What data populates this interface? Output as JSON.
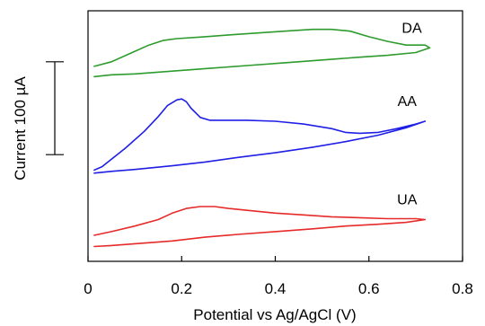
{
  "chart_data": {
    "type": "line",
    "title": "",
    "xlabel": "Potential vs Ag/AgCl  (V)",
    "ylabel": "Current  100 µA",
    "xlim": [
      0,
      0.8
    ],
    "xticks": [
      0,
      0.2,
      0.4,
      0.6,
      0.8
    ],
    "xtick_labels": [
      "0",
      "0.2",
      "0.4",
      "0.6",
      "0.8"
    ],
    "ylim": [
      0,
      270
    ],
    "y_scale_bar": {
      "label": "Current  100 µA",
      "value": 100,
      "from": 115,
      "to": 215
    },
    "grid": false,
    "legend": "none",
    "series": [
      {
        "name": "DA",
        "color": "#2e9b2e",
        "x": [
          0.012,
          0.05,
          0.09,
          0.13,
          0.16,
          0.19,
          0.25,
          0.3,
          0.36,
          0.42,
          0.48,
          0.52,
          0.56,
          0.6,
          0.64,
          0.68,
          0.72,
          0.73,
          0.7,
          0.64,
          0.58,
          0.5,
          0.42,
          0.34,
          0.26,
          0.18,
          0.1,
          0.05,
          0.012
        ],
        "y": [
          210,
          215,
          224,
          233,
          238,
          240,
          242,
          244,
          246,
          248,
          250,
          250,
          248,
          242,
          237,
          233,
          233,
          230,
          225,
          222,
          220,
          217,
          214,
          211,
          208,
          205,
          202,
          201,
          199
        ]
      },
      {
        "name": "AA",
        "color": "#1f1fe6",
        "x": [
          0.012,
          0.03,
          0.05,
          0.08,
          0.12,
          0.15,
          0.17,
          0.19,
          0.2,
          0.21,
          0.22,
          0.24,
          0.26,
          0.3,
          0.34,
          0.4,
          0.46,
          0.52,
          0.55,
          0.58,
          0.62,
          0.66,
          0.7,
          0.72,
          0.68,
          0.62,
          0.55,
          0.48,
          0.4,
          0.32,
          0.25,
          0.18,
          0.1,
          0.05,
          0.012
        ],
        "y": [
          98,
          102,
          110,
          122,
          140,
          156,
          168,
          174,
          175,
          172,
          165,
          155,
          152,
          152,
          152,
          151,
          148,
          143,
          139,
          138,
          139,
          143,
          148,
          151,
          144,
          136,
          129,
          123,
          117,
          112,
          107,
          103,
          99,
          97,
          95
        ]
      },
      {
        "name": "UA",
        "color": "#e62a2a",
        "x": [
          0.012,
          0.05,
          0.1,
          0.15,
          0.18,
          0.21,
          0.24,
          0.27,
          0.3,
          0.34,
          0.4,
          0.46,
          0.52,
          0.58,
          0.64,
          0.7,
          0.72,
          0.68,
          0.62,
          0.55,
          0.48,
          0.4,
          0.32,
          0.25,
          0.18,
          0.1,
          0.05,
          0.012
        ],
        "y": [
          28,
          32,
          38,
          45,
          52,
          57,
          59,
          59,
          57,
          55,
          52,
          50,
          48,
          47,
          46,
          46,
          45,
          42,
          40,
          38,
          35,
          32,
          29,
          26,
          22,
          19,
          17,
          16
        ]
      }
    ],
    "series_labels": [
      "DA",
      "AA",
      "UA"
    ]
  }
}
